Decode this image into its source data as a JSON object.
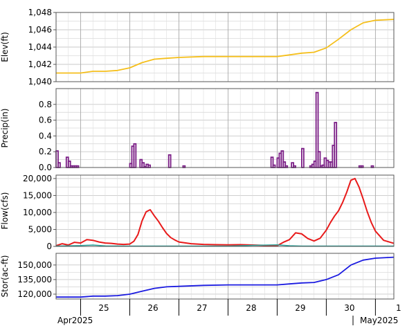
{
  "colors": {
    "elevation": "#f5bf1b",
    "precip": "#7b1e86",
    "flow_out": "#e81a1a",
    "flow_in": "#2aa39a",
    "storage": "#1a1ae0",
    "grid": "#c8c8c8",
    "frame": "#555555",
    "day_tick": "#000000"
  },
  "x_axis": {
    "day_labels": [
      "25",
      "26",
      "27",
      "28",
      "29",
      "30",
      "1"
    ],
    "month_labels": [
      "Apr2025",
      "May2025"
    ],
    "range_days": [
      "2025-04-24T12:00",
      "2025-05-01T09:00"
    ]
  },
  "chart_data": [
    {
      "type": "line",
      "ylabel": "Elev(ft)",
      "ylim": [
        1040,
        1048
      ],
      "yticks": [
        "1,040",
        "1,042",
        "1,044",
        "1,046",
        "1,048"
      ],
      "grid": true,
      "series": [
        {
          "color_key": "elevation",
          "x": [
            "2025-04-24T12:00",
            "2025-04-25T00:00",
            "2025-04-25T06:00",
            "2025-04-25T12:00",
            "2025-04-25T18:00",
            "2025-04-26T00:00",
            "2025-04-26T06:00",
            "2025-04-26T12:00",
            "2025-04-26T18:00",
            "2025-04-27T00:00",
            "2025-04-27T12:00",
            "2025-04-28T00:00",
            "2025-04-28T12:00",
            "2025-04-29T00:00",
            "2025-04-29T06:00",
            "2025-04-29T12:00",
            "2025-04-29T18:00",
            "2025-04-30T00:00",
            "2025-04-30T06:00",
            "2025-04-30T12:00",
            "2025-04-30T18:00",
            "2025-05-01T00:00",
            "2025-05-01T09:00"
          ],
          "values": [
            1041.0,
            1041.0,
            1041.2,
            1041.2,
            1041.3,
            1041.6,
            1042.2,
            1042.6,
            1042.7,
            1042.8,
            1042.9,
            1042.9,
            1042.9,
            1042.9,
            1043.1,
            1043.3,
            1043.4,
            1043.9,
            1044.9,
            1046.0,
            1046.8,
            1047.1,
            1047.2
          ]
        }
      ]
    },
    {
      "type": "bar",
      "ylabel": "Precip(in)",
      "ylim": [
        0,
        1.0
      ],
      "yticks": [
        "0.0",
        "0.2",
        "0.4",
        "0.6",
        "0.8"
      ],
      "grid": true,
      "series": [
        {
          "color_key": "precip",
          "x": [
            "2025-04-24T12:00",
            "2025-04-24T13:00",
            "2025-04-24T14:00",
            "2025-04-24T15:00",
            "2025-04-24T16:00",
            "2025-04-24T17:00",
            "2025-04-24T18:00",
            "2025-04-24T19:00",
            "2025-04-24T20:00",
            "2025-04-24T21:00",
            "2025-04-24T22:00",
            "2025-04-24T23:00",
            "2025-04-25T00:00",
            "2025-04-25T01:00",
            "2025-04-25T02:00",
            "2025-04-26T00:00",
            "2025-04-26T01:00",
            "2025-04-26T02:00",
            "2025-04-26T03:00",
            "2025-04-26T05:00",
            "2025-04-26T06:00",
            "2025-04-26T07:00",
            "2025-04-26T08:00",
            "2025-04-26T09:00",
            "2025-04-26T10:00",
            "2025-04-26T11:00",
            "2025-04-26T19:00",
            "2025-04-26T20:00",
            "2025-04-27T02:00",
            "2025-04-28T21:00",
            "2025-04-28T22:00",
            "2025-04-29T00:00",
            "2025-04-29T01:00",
            "2025-04-29T02:00",
            "2025-04-29T03:00",
            "2025-04-29T04:00",
            "2025-04-29T07:00",
            "2025-04-29T08:00",
            "2025-04-29T12:00",
            "2025-04-29T13:00",
            "2025-04-29T16:00",
            "2025-04-29T17:00",
            "2025-04-29T18:00",
            "2025-04-29T19:00",
            "2025-04-29T20:00",
            "2025-04-29T21:00",
            "2025-04-29T22:00",
            "2025-04-29T23:00",
            "2025-04-30T00:00",
            "2025-04-30T01:00",
            "2025-04-30T02:00",
            "2025-04-30T03:00",
            "2025-04-30T04:00",
            "2025-04-30T05:00",
            "2025-04-30T06:00",
            "2025-04-30T07:00",
            "2025-04-30T08:00",
            "2025-04-30T16:00",
            "2025-04-30T17:00",
            "2025-04-30T18:00",
            "2025-04-30T22:00"
          ],
          "values": [
            0.21,
            0.06,
            0.0,
            0.0,
            0.0,
            0.13,
            0.08,
            0.02,
            0.02,
            0.02,
            0.02,
            0.0,
            0.0,
            0.0,
            0.0,
            0.05,
            0.27,
            0.3,
            0.0,
            0.1,
            0.06,
            0.01,
            0.04,
            0.03,
            0.0,
            0.0,
            0.16,
            0.0,
            0.02,
            0.13,
            0.03,
            0.12,
            0.18,
            0.21,
            0.07,
            0.02,
            0.06,
            0.02,
            0.24,
            0.0,
            0.02,
            0.04,
            0.08,
            0.95,
            0.2,
            0.02,
            0.03,
            0.12,
            0.09,
            0.07,
            0.07,
            0.28,
            0.57,
            0.0,
            0.0,
            0.0,
            0.0,
            0.02,
            0.02,
            0.0,
            0.02
          ]
        }
      ]
    },
    {
      "type": "line",
      "ylabel": "Flow(cfs)",
      "ylim": [
        0,
        21000
      ],
      "yticks": [
        "0",
        "5,000",
        "10,000",
        "15,000",
        "20,000"
      ],
      "grid": true,
      "series": [
        {
          "color_key": "flow_out",
          "x": [
            "2025-04-24T12:00",
            "2025-04-24T15:00",
            "2025-04-24T18:00",
            "2025-04-24T21:00",
            "2025-04-25T00:00",
            "2025-04-25T03:00",
            "2025-04-25T06:00",
            "2025-04-25T09:00",
            "2025-04-25T12:00",
            "2025-04-25T15:00",
            "2025-04-25T18:00",
            "2025-04-25T21:00",
            "2025-04-26T00:00",
            "2025-04-26T02:00",
            "2025-04-26T04:00",
            "2025-04-26T06:00",
            "2025-04-26T08:00",
            "2025-04-26T10:00",
            "2025-04-26T12:00",
            "2025-04-26T14:00",
            "2025-04-26T16:00",
            "2025-04-26T18:00",
            "2025-04-26T20:00",
            "2025-04-26T22:00",
            "2025-04-27T00:00",
            "2025-04-27T06:00",
            "2025-04-27T12:00",
            "2025-04-27T18:00",
            "2025-04-28T00:00",
            "2025-04-28T06:00",
            "2025-04-28T12:00",
            "2025-04-28T18:00",
            "2025-04-29T00:00",
            "2025-04-29T03:00",
            "2025-04-29T06:00",
            "2025-04-29T09:00",
            "2025-04-29T12:00",
            "2025-04-29T15:00",
            "2025-04-29T18:00",
            "2025-04-29T21:00",
            "2025-04-30T00:00",
            "2025-04-30T02:00",
            "2025-04-30T04:00",
            "2025-04-30T06:00",
            "2025-04-30T08:00",
            "2025-04-30T10:00",
            "2025-04-30T12:00",
            "2025-04-30T14:00",
            "2025-04-30T16:00",
            "2025-04-30T18:00",
            "2025-04-30T20:00",
            "2025-04-30T22:00",
            "2025-05-01T00:00",
            "2025-05-01T04:00",
            "2025-05-01T09:00"
          ],
          "values": [
            200,
            800,
            400,
            1200,
            1000,
            2000,
            1800,
            1300,
            1000,
            900,
            700,
            600,
            700,
            1500,
            3500,
            7500,
            10200,
            10800,
            9000,
            7400,
            5500,
            3800,
            2600,
            1900,
            1300,
            800,
            600,
            500,
            450,
            500,
            400,
            300,
            200,
            1200,
            2000,
            4000,
            3700,
            2300,
            1600,
            2400,
            4800,
            7000,
            8900,
            10500,
            13000,
            16000,
            19500,
            20000,
            17500,
            14000,
            10200,
            7000,
            4500,
            1800,
            900
          ]
        },
        {
          "color_key": "flow_in",
          "x": [
            "2025-04-24T12:00",
            "2025-04-25T00:00",
            "2025-04-25T06:00",
            "2025-04-25T12:00",
            "2025-04-26T00:00",
            "2025-04-27T00:00",
            "2025-04-28T00:00",
            "2025-04-28T12:00",
            "2025-04-29T00:00",
            "2025-04-29T06:00",
            "2025-04-29T12:00",
            "2025-04-30T00:00",
            "2025-05-01T09:00"
          ],
          "values": [
            100,
            250,
            400,
            150,
            100,
            100,
            100,
            300,
            450,
            200,
            100,
            100,
            100
          ]
        }
      ]
    },
    {
      "type": "line",
      "ylabel": "Stor(ac-ft)",
      "ylim": [
        115000,
        162000
      ],
      "yticks": [
        "120,000",
        "135,000",
        "150,000"
      ],
      "grid": true,
      "series": [
        {
          "color_key": "storage",
          "x": [
            "2025-04-24T12:00",
            "2025-04-25T00:00",
            "2025-04-25T06:00",
            "2025-04-25T12:00",
            "2025-04-25T18:00",
            "2025-04-26T00:00",
            "2025-04-26T06:00",
            "2025-04-26T12:00",
            "2025-04-26T18:00",
            "2025-04-27T00:00",
            "2025-04-27T12:00",
            "2025-04-28T00:00",
            "2025-04-28T12:00",
            "2025-04-29T00:00",
            "2025-04-29T06:00",
            "2025-04-29T12:00",
            "2025-04-29T18:00",
            "2025-04-30T00:00",
            "2025-04-30T06:00",
            "2025-04-30T12:00",
            "2025-04-30T18:00",
            "2025-05-01T00:00",
            "2025-05-01T09:00"
          ],
          "values": [
            117000,
            117000,
            118000,
            118000,
            118500,
            120000,
            123000,
            126000,
            127500,
            128000,
            129000,
            129500,
            129500,
            129500,
            130500,
            131500,
            132000,
            135000,
            140000,
            150000,
            155000,
            157000,
            158000
          ]
        }
      ]
    }
  ]
}
